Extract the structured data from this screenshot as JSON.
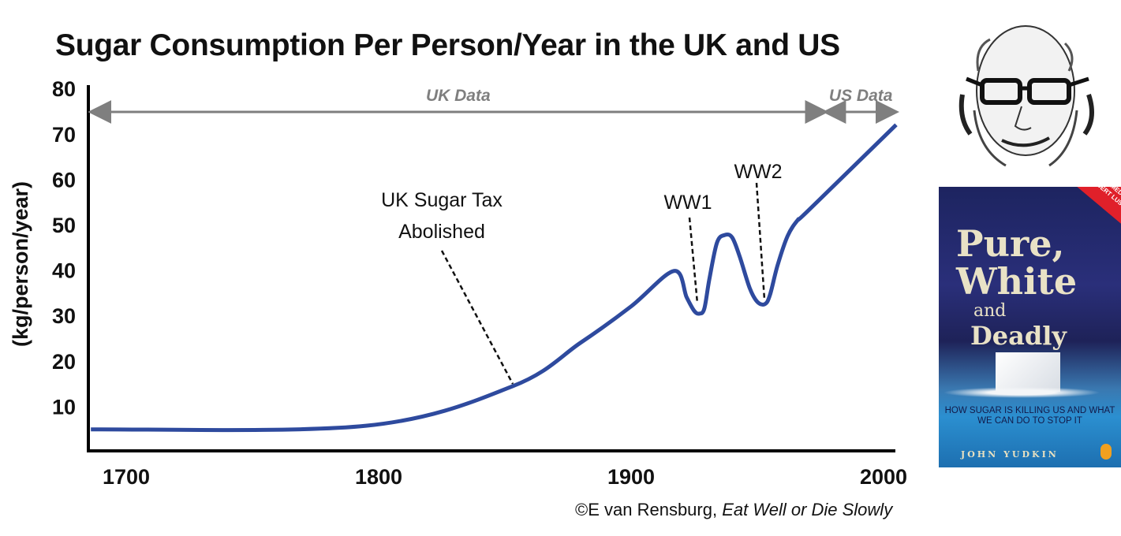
{
  "chart_data": {
    "type": "line",
    "title": "Sugar Consumption Per Person/Year in the UK and US",
    "xlabel": "",
    "ylabel": "(kg/person/year)",
    "xlim": [
      1686,
      2005
    ],
    "ylim": [
      0,
      80
    ],
    "x_ticks": [
      "1700",
      "1800",
      "1900",
      "2000"
    ],
    "y_ticks": [
      "10",
      "20",
      "30",
      "40",
      "50",
      "60",
      "70",
      "80"
    ],
    "grid": false,
    "series": [
      {
        "color": "#2e4a9e",
        "x": [
          1686,
          1795,
          1853,
          1880,
          1900,
          1917,
          1922,
          1925,
          1927,
          1929,
          1931,
          1934,
          1937,
          1940,
          1943,
          1947,
          1950,
          1953,
          1955,
          1958,
          1962,
          1966,
          1970,
          2005
        ],
        "y": [
          4.9,
          5.7,
          14.4,
          24,
          32,
          39.8,
          34,
          31,
          30.4,
          31.5,
          38,
          46,
          47.7,
          47.2,
          43,
          36,
          33,
          32.5,
          34.5,
          41,
          47.5,
          51,
          53,
          72
        ]
      }
    ],
    "ranges": [
      {
        "label": "UK Data",
        "from": 1686,
        "to": 1977
      },
      {
        "label": "US Data",
        "from": 1977,
        "to": 2005
      }
    ],
    "annotations": [
      {
        "lines": [
          "UK Sugar Tax",
          "Abolished"
        ],
        "x": 1853
      },
      {
        "lines": [
          "WW1"
        ],
        "x": 1926
      },
      {
        "lines": [
          "WW2"
        ],
        "x": 1952
      }
    ]
  },
  "credit": {
    "prefix": "©E van Rensburg, ",
    "italic": "Eat Well or Die Slowly"
  },
  "book": {
    "banner": "THE CLASSIC MEDICAL EXPOSÉ",
    "banner_sub": "DR ROBERT LUSTIG, MD",
    "title_line1": "Pure,",
    "title_line2": "White",
    "title_line3": "and",
    "title_line4": "Deadly",
    "subtitle": "HOW SUGAR IS KILLING US AND WHAT WE CAN DO TO STOP IT",
    "author": "JOHN YUDKIN",
    "publisher_logo": "penguin-life-logo"
  }
}
